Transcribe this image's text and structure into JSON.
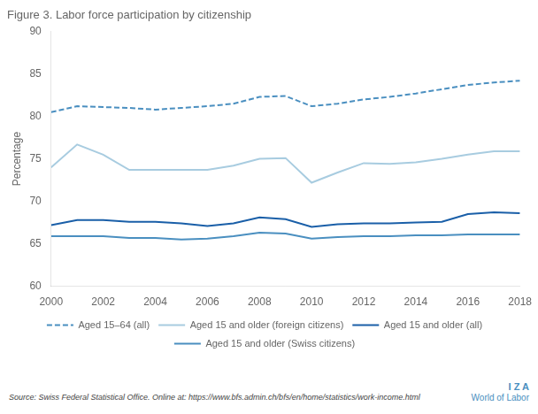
{
  "chart_data": {
    "type": "line",
    "title": "Figure 3. Labor force participation by citizenship",
    "y_label": "Percentage",
    "annotations": [
      "Source: Swiss Federal Statistical Office. Online at: https://www.bfs.admin.ch/bfs/en/home/statistics/work-income.html",
      "I Z A",
      "World of Labor"
    ],
    "annotation_color": "#4a8fc0",
    "x": [
      2000,
      2001,
      2002,
      2003,
      2004,
      2005,
      2006,
      2007,
      2008,
      2009,
      2010,
      2011,
      2012,
      2013,
      2014,
      2015,
      2016,
      2017,
      2018
    ],
    "series": [
      {
        "name": "Aged 15–64 (all)",
        "color": "#4a8fc0",
        "line_style": "dashed",
        "values": [
          80.5,
          81.2,
          81.1,
          81.0,
          80.8,
          81.0,
          81.2,
          81.5,
          82.3,
          82.4,
          81.2,
          81.5,
          82.0,
          82.3,
          82.7,
          83.2,
          83.7,
          84.0,
          84.2
        ]
      },
      {
        "name": "Aged 15 and older (foreign citizens)",
        "color": "#a8cce0",
        "line_style": "solid",
        "values": [
          74.0,
          76.7,
          75.5,
          73.7,
          73.7,
          73.7,
          73.7,
          74.2,
          75.0,
          75.1,
          72.2,
          73.4,
          74.5,
          74.4,
          74.6,
          75.0,
          75.5,
          75.9,
          75.9
        ]
      },
      {
        "name": "Aged 15 and older (all)",
        "color": "#1a5fa8",
        "line_style": "solid",
        "values": [
          67.2,
          67.8,
          67.8,
          67.6,
          67.6,
          67.4,
          67.1,
          67.4,
          68.1,
          67.9,
          67.0,
          67.3,
          67.4,
          67.4,
          67.5,
          67.6,
          68.5,
          68.7,
          68.6
        ]
      },
      {
        "name": "Aged 15 and older (Swiss citizens)",
        "color": "#4a8fc0",
        "line_style": "solid",
        "values": [
          65.9,
          65.9,
          65.9,
          65.7,
          65.7,
          65.5,
          65.6,
          65.9,
          66.3,
          66.2,
          65.6,
          65.8,
          65.9,
          65.9,
          66.0,
          66.0,
          66.1,
          66.1,
          66.1
        ]
      }
    ],
    "xlim": [
      2000,
      2018
    ],
    "xticks": [
      2000,
      2002,
      2004,
      2006,
      2008,
      2010,
      2012,
      2014,
      2016,
      2018
    ],
    "ylim": [
      60,
      90
    ],
    "yticks": [
      60,
      65,
      70,
      75,
      80,
      85,
      90
    ],
    "grid": false,
    "legend": "bottom"
  }
}
